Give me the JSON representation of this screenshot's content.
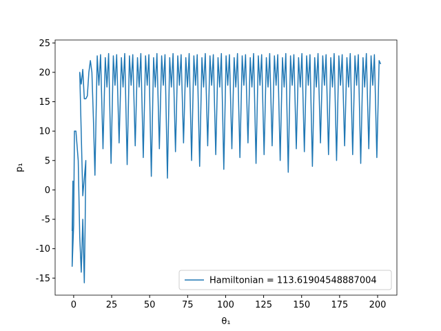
{
  "chart_data": {
    "type": "line",
    "xlabel": "θ₁",
    "ylabel": "p₁",
    "x": [
      -1,
      -0.5,
      -1,
      0,
      0.5,
      1.5,
      3,
      4,
      5,
      6,
      7,
      7.5,
      8,
      6,
      4,
      5,
      6,
      7,
      8,
      9,
      10,
      11,
      12,
      13,
      14,
      15.5,
      16.6,
      17.7,
      19.3,
      20.8,
      21.9,
      23,
      24.6,
      26.1,
      27.2,
      28.3,
      29.9,
      31.4,
      32.5,
      33.6,
      35.2,
      36.7,
      37.8,
      38.9,
      40.5,
      42,
      43.1,
      44.2,
      45.8,
      47.3,
      48.4,
      49.5,
      51.1,
      52.6,
      53.7,
      54.8,
      56.4,
      57.9,
      59,
      60.1,
      61.7,
      63.2,
      64.3,
      65.4,
      67,
      68.5,
      69.6,
      70.7,
      72.3,
      73.8,
      74.9,
      76,
      77.6,
      79.1,
      80.2,
      81.3,
      82.9,
      84.4,
      85.5,
      86.6,
      88.2,
      89.7,
      90.8,
      91.9,
      93.5,
      95,
      96.1,
      97.2,
      98.8,
      100.3,
      101.4,
      102.5,
      104.1,
      105.6,
      106.7,
      107.8,
      109.4,
      110.9,
      112,
      113.1,
      114.7,
      116.2,
      117.3,
      118.4,
      120,
      121.5,
      122.6,
      123.7,
      125.3,
      126.8,
      127.9,
      129,
      130.6,
      132.1,
      133.2,
      134.3,
      135.9,
      137.4,
      138.5,
      139.6,
      141.2,
      142.7,
      143.8,
      144.9,
      146.5,
      148,
      149.1,
      150.2,
      151.8,
      153.3,
      154.4,
      155.5,
      157.1,
      158.6,
      159.7,
      160.8,
      162.4,
      163.9,
      165,
      166.1,
      167.7,
      169.2,
      170.3,
      171.4,
      173,
      174.5,
      175.6,
      176.7,
      178.3,
      179.8,
      180.9,
      182,
      183.6,
      185.1,
      186.2,
      187.3,
      188.9,
      190.4,
      191.5,
      192.6,
      194.2,
      195.7,
      196.8,
      197.9,
      199.5,
      201,
      202
    ],
    "series": [
      {
        "name": "Hamiltonian = 113.61904548887004",
        "color": "#1f77b4",
        "values": [
          -7,
          1.5,
          -13,
          -6,
          10,
          10,
          5,
          -8,
          -14,
          -5,
          -15.8,
          -7,
          5,
          -1,
          20,
          18,
          20.5,
          15.5,
          15.5,
          16,
          20,
          22,
          20,
          12,
          2.5,
          22.8,
          17.8,
          23,
          7,
          22.5,
          17.5,
          23.2,
          4.5,
          22.8,
          17.8,
          23,
          8,
          22.5,
          17.5,
          23.2,
          4.3,
          22.8,
          17.8,
          23,
          7.5,
          22.5,
          17.5,
          23.2,
          5.5,
          22.8,
          17.8,
          23,
          2.3,
          22.5,
          17.5,
          23.2,
          7,
          22.8,
          17.8,
          23,
          2,
          22.5,
          17.5,
          23.2,
          6.5,
          22.8,
          17.8,
          23,
          8,
          22.5,
          17.5,
          23.2,
          5,
          22.8,
          17.8,
          23,
          4,
          22.5,
          17.5,
          23.2,
          7.5,
          22.8,
          17.8,
          23,
          6,
          22.5,
          17.5,
          23.2,
          3.5,
          22.8,
          17.8,
          23,
          7,
          22.5,
          17.5,
          23.2,
          5.5,
          22.8,
          17.8,
          23,
          8,
          22.5,
          17.5,
          23.2,
          4.5,
          22.8,
          17.8,
          23,
          6,
          22.5,
          17.5,
          23.2,
          7.5,
          22.8,
          17.8,
          23,
          5,
          22.5,
          17.5,
          23.2,
          3,
          22.8,
          17.8,
          23,
          7,
          22.5,
          17.5,
          23.2,
          6.5,
          22.8,
          17.8,
          23,
          4,
          22.5,
          17.5,
          23.2,
          8,
          22.8,
          17.8,
          23,
          6,
          22.5,
          17.5,
          23.2,
          5,
          22.8,
          17.8,
          23,
          7.5,
          22.5,
          17.5,
          23.2,
          6,
          22.8,
          17.8,
          23,
          4.5,
          22.5,
          17.5,
          23.2,
          7,
          22.8,
          17.8,
          23,
          5.5,
          22,
          21.4
        ]
      }
    ],
    "xlim": [
      -12.2,
      212.7
    ],
    "ylim": [
      -17.9,
      25.5
    ],
    "xticks": [
      0,
      25,
      50,
      75,
      100,
      125,
      150,
      175,
      200
    ],
    "yticks": [
      -15,
      -10,
      -5,
      0,
      5,
      10,
      15,
      20,
      25
    ],
    "legend": "lower right"
  }
}
